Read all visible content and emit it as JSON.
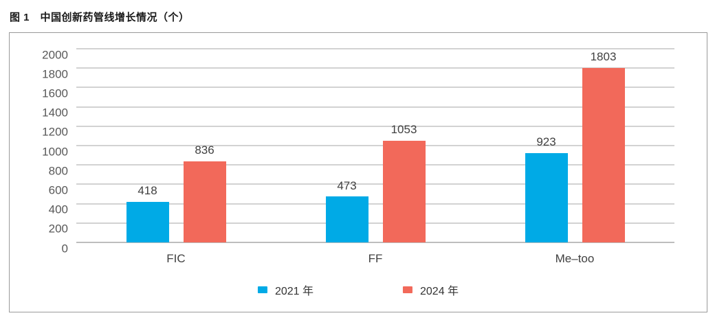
{
  "title": "图 1　中国创新药管线增长情况（个）",
  "chart_data": {
    "type": "bar",
    "title": "图 1　中国创新药管线增长情况（个）",
    "categories": [
      "FIC",
      "FF",
      "Me–too"
    ],
    "series": [
      {
        "name": "2021 年",
        "color": "#00AAE6",
        "values": [
          418,
          473,
          923
        ]
      },
      {
        "name": "2024 年",
        "color": "#F2695A",
        "values": [
          836,
          1053,
          1803
        ]
      }
    ],
    "ylim": [
      0,
      2000
    ],
    "ytick_step": 200,
    "yticks": [
      0,
      200,
      400,
      600,
      800,
      1000,
      1200,
      1400,
      1600,
      1800,
      2000
    ],
    "xlabel": "",
    "ylabel": "",
    "grid": "horizontal",
    "data_labels": true,
    "legend_position": "bottom-center"
  },
  "colors": {
    "gridline": "#D2D2D2",
    "axis_line": "#BDBDBD",
    "box_border": "#999999",
    "tick_text": "#595959",
    "label_text": "#404040"
  }
}
